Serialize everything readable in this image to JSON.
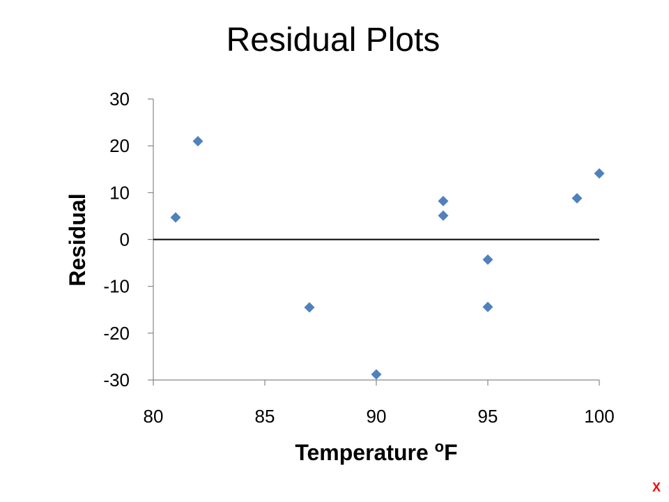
{
  "slide": {
    "title": "Residual Plots",
    "corner_label": "X"
  },
  "colors": {
    "marker": "#4F81BD",
    "axis": "#868686",
    "zero_line": "#000000",
    "corner_label": "#FF0000"
  },
  "chart_data": {
    "type": "scatter",
    "title": "",
    "xlabel": "Temperature",
    "xlabel_unit": "oF",
    "ylabel": "Residual",
    "xlim": [
      80,
      100
    ],
    "ylim": [
      -30,
      30
    ],
    "xticks": [
      80,
      85,
      90,
      95,
      100
    ],
    "yticks": [
      30,
      20,
      10,
      0,
      -10,
      -20,
      -30
    ],
    "grid": false,
    "marker": "diamond",
    "reference_line": {
      "y": 0,
      "x_from": 80,
      "x_to": 100
    },
    "series": [
      {
        "points": [
          {
            "x": 81,
            "y": 4.7
          },
          {
            "x": 82,
            "y": 21
          },
          {
            "x": 87,
            "y": -14.5
          },
          {
            "x": 90,
            "y": -28.8
          },
          {
            "x": 93,
            "y": 8.2
          },
          {
            "x": 93,
            "y": 5.1
          },
          {
            "x": 95,
            "y": -4.3
          },
          {
            "x": 95,
            "y": -14.4
          },
          {
            "x": 99,
            "y": 8.8
          },
          {
            "x": 100,
            "y": 14.1
          }
        ]
      }
    ]
  }
}
